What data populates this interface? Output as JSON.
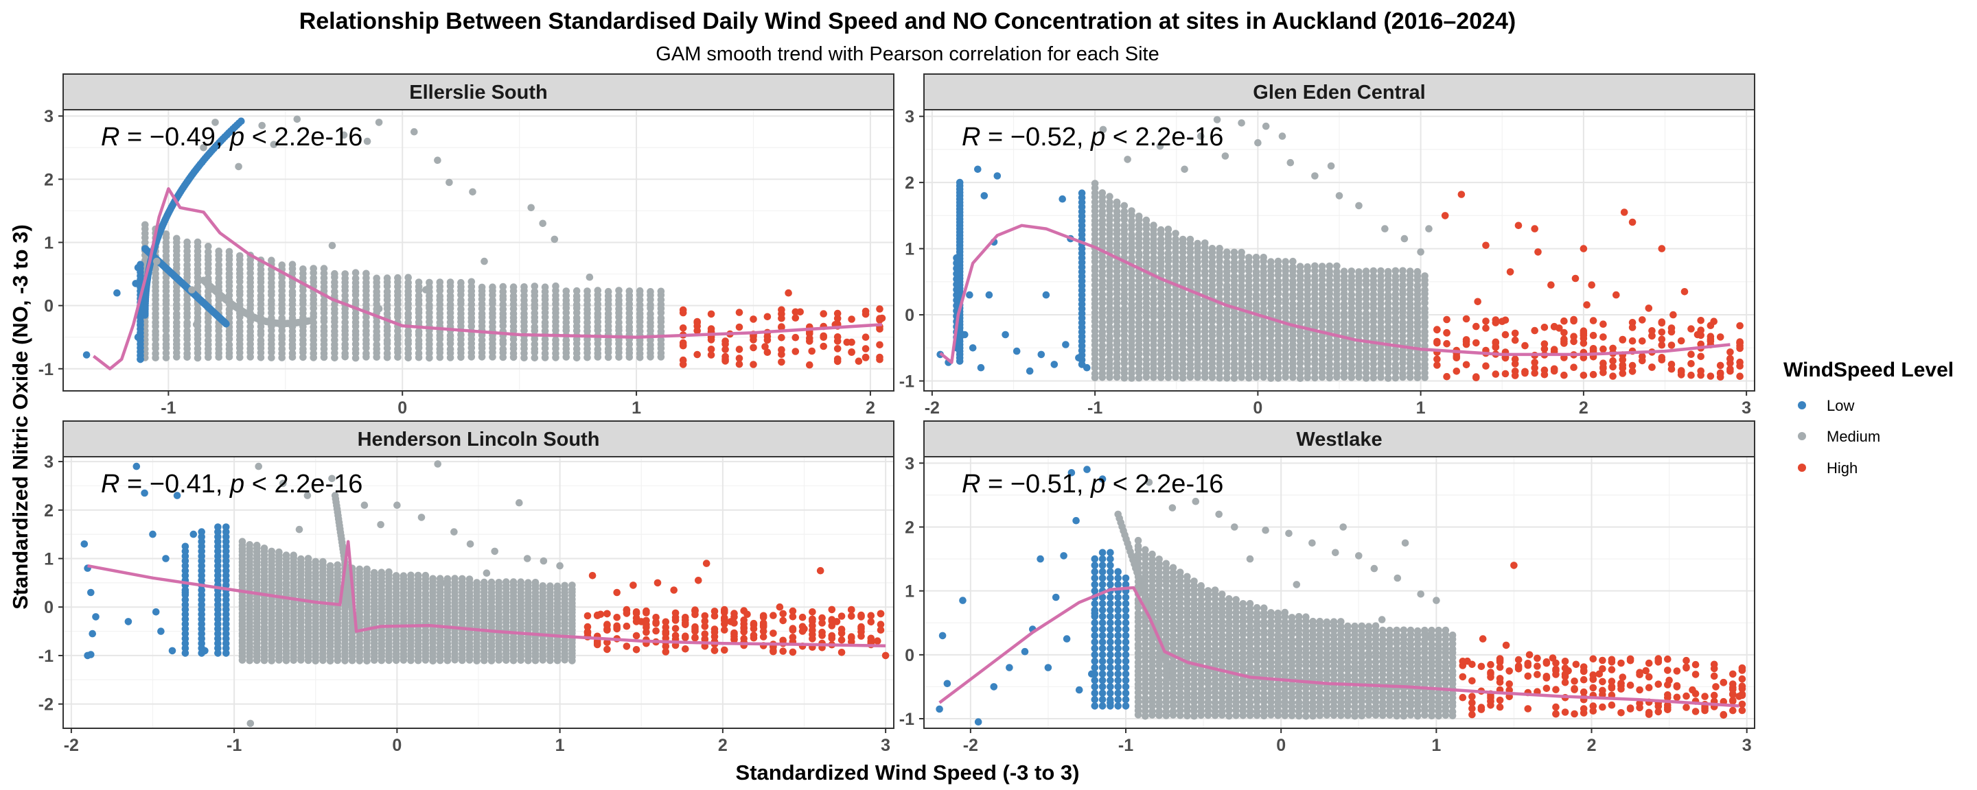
{
  "title": "Relationship Between Standardised Daily Wind Speed and NO Concentration at sites in Auckland (2016–2024)",
  "subtitle": "GAM smooth trend with Pearson correlation for each Site",
  "xlabel": "Standardized Wind Speed (-3 to 3)",
  "ylabel": "Standardized Nitric Oxide (NO, -3 to 3)",
  "legend": {
    "title": "WindSpeed Level",
    "items": [
      {
        "label": "Low",
        "color": "#3a83c0"
      },
      {
        "label": "Medium",
        "color": "#a5acaf"
      },
      {
        "label": "High",
        "color": "#e3462e"
      }
    ]
  },
  "colors": {
    "low": "#3a83c0",
    "medium": "#a5acaf",
    "high": "#e3462e",
    "smooth": "#d36fab"
  },
  "chart_data": [
    {
      "type": "scatter",
      "facet": "Ellerslie South",
      "stat_r": "−0.49",
      "stat_p": "< 2.2e-16",
      "xlim": [
        -1.45,
        2.1
      ],
      "ylim": [
        -1.35,
        3.1
      ],
      "xticks": [
        -1,
        0,
        1,
        2
      ],
      "yticks": [
        -1,
        0,
        1,
        2,
        3
      ],
      "medium_range": [
        -1.1,
        1.15
      ],
      "mode": "ellerslie",
      "smooth": [
        [
          -1.32,
          -0.8
        ],
        [
          -1.25,
          -1.0
        ],
        [
          -1.2,
          -0.85
        ],
        [
          -1.15,
          -0.3
        ],
        [
          -1.08,
          0.7
        ],
        [
          -1.04,
          1.4
        ],
        [
          -1.0,
          1.85
        ],
        [
          -0.95,
          1.55
        ],
        [
          -0.85,
          1.48
        ],
        [
          -0.78,
          1.15
        ],
        [
          -0.65,
          0.8
        ],
        [
          -0.5,
          0.5
        ],
        [
          -0.3,
          0.1
        ],
        [
          0.0,
          -0.32
        ],
        [
          0.5,
          -0.46
        ],
        [
          1.0,
          -0.5
        ],
        [
          1.5,
          -0.43
        ],
        [
          2.05,
          -0.3
        ]
      ],
      "low_points": [
        [
          -1.35,
          -0.78
        ],
        [
          -1.22,
          0.2
        ],
        [
          -1.12,
          -0.3
        ],
        [
          -1.13,
          0.6
        ],
        [
          -1.12,
          -0.85
        ],
        [
          -1.13,
          -0.5
        ],
        [
          -1.12,
          0.0
        ],
        [
          -1.14,
          0.35
        ]
      ],
      "high_points": [
        [
          1.4,
          -0.45
        ],
        [
          1.55,
          -0.65
        ],
        [
          1.65,
          0.2
        ],
        [
          1.75,
          -0.72
        ],
        [
          1.8,
          -0.5
        ],
        [
          1.9,
          -0.58
        ],
        [
          1.95,
          -0.88
        ],
        [
          2.05,
          -0.2
        ],
        [
          1.85,
          -0.3
        ],
        [
          1.7,
          -0.1
        ]
      ],
      "medium_points": [
        [
          -0.6,
          2.85
        ],
        [
          -0.55,
          2.55
        ],
        [
          -0.45,
          2.95
        ],
        [
          -0.25,
          2.7
        ],
        [
          -0.15,
          2.6
        ],
        [
          -0.1,
          2.9
        ],
        [
          0.05,
          2.75
        ],
        [
          0.15,
          2.3
        ],
        [
          -0.7,
          2.2
        ],
        [
          0.2,
          1.95
        ],
        [
          0.3,
          1.8
        ],
        [
          0.55,
          1.55
        ],
        [
          0.6,
          1.3
        ],
        [
          0.65,
          1.05
        ],
        [
          -0.85,
          2.5
        ],
        [
          -0.8,
          2.9
        ],
        [
          -1.05,
          0.7
        ],
        [
          -0.88,
          -0.3
        ],
        [
          -0.9,
          0.25
        ],
        [
          -0.3,
          0.95
        ],
        [
          0.35,
          0.7
        ],
        [
          0.1,
          0.25
        ],
        [
          0.8,
          0.45
        ],
        [
          -0.1,
          -0.05
        ]
      ]
    },
    {
      "type": "scatter",
      "facet": "Glen Eden Central",
      "stat_r": "−0.52",
      "stat_p": "< 2.2e-16",
      "xlim": [
        -2.05,
        3.05
      ],
      "ylim": [
        -1.15,
        3.1
      ],
      "xticks": [
        -2,
        -1,
        0,
        1,
        2,
        3
      ],
      "yticks": [
        -1,
        0,
        1,
        2,
        3
      ],
      "medium_range": [
        -1.0,
        1.05
      ],
      "mode": "glen",
      "smooth": [
        [
          -1.95,
          -0.58
        ],
        [
          -1.88,
          -0.72
        ],
        [
          -1.84,
          0.0
        ],
        [
          -1.75,
          0.78
        ],
        [
          -1.6,
          1.2
        ],
        [
          -1.45,
          1.35
        ],
        [
          -1.3,
          1.3
        ],
        [
          -1.0,
          1.02
        ],
        [
          -0.6,
          0.55
        ],
        [
          -0.2,
          0.15
        ],
        [
          0.2,
          -0.15
        ],
        [
          0.6,
          -0.38
        ],
        [
          1.0,
          -0.52
        ],
        [
          1.5,
          -0.6
        ],
        [
          2.0,
          -0.6
        ],
        [
          2.5,
          -0.55
        ],
        [
          2.9,
          -0.45
        ]
      ],
      "low_points": [
        [
          -1.95,
          -0.6
        ],
        [
          -1.9,
          -0.72
        ],
        [
          -1.75,
          -0.5
        ],
        [
          -1.7,
          -0.8
        ],
        [
          -1.62,
          1.1
        ],
        [
          -1.55,
          -0.3
        ],
        [
          -1.48,
          -0.55
        ],
        [
          -1.4,
          -0.85
        ],
        [
          -1.33,
          -0.6
        ],
        [
          -1.3,
          0.3
        ],
        [
          -1.25,
          -0.75
        ],
        [
          -1.18,
          -0.45
        ],
        [
          -1.1,
          -0.65
        ],
        [
          -1.15,
          1.15
        ],
        [
          -1.2,
          1.75
        ],
        [
          -1.68,
          1.8
        ],
        [
          -1.72,
          2.2
        ],
        [
          -1.8,
          -0.3
        ],
        [
          -1.77,
          0.3
        ],
        [
          -1.65,
          0.3
        ],
        [
          -1.05,
          -0.8
        ],
        [
          -1.6,
          2.1
        ]
      ],
      "high_points": [
        [
          1.25,
          1.82
        ],
        [
          1.15,
          1.5
        ],
        [
          1.4,
          1.05
        ],
        [
          1.55,
          0.65
        ],
        [
          1.6,
          1.35
        ],
        [
          1.7,
          1.3
        ],
        [
          1.72,
          0.95
        ],
        [
          1.8,
          0.45
        ],
        [
          1.85,
          -0.2
        ],
        [
          2.0,
          1.0
        ],
        [
          2.02,
          0.15
        ],
        [
          2.05,
          0.45
        ],
        [
          2.2,
          0.3
        ],
        [
          2.25,
          1.55
        ],
        [
          2.3,
          1.4
        ],
        [
          2.48,
          1.0
        ],
        [
          2.55,
          0.0
        ],
        [
          2.62,
          0.35
        ],
        [
          2.7,
          -0.3
        ],
        [
          2.8,
          -0.1
        ],
        [
          1.95,
          0.55
        ],
        [
          1.35,
          0.2
        ],
        [
          1.5,
          -0.1
        ],
        [
          2.4,
          0.1
        ]
      ],
      "medium_points": [
        [
          -0.25,
          2.95
        ],
        [
          -0.35,
          2.7
        ],
        [
          -0.1,
          2.9
        ],
        [
          0.05,
          2.85
        ],
        [
          -0.8,
          2.35
        ],
        [
          -0.6,
          2.55
        ],
        [
          -0.45,
          2.2
        ],
        [
          0.0,
          2.6
        ],
        [
          0.2,
          2.3
        ],
        [
          0.35,
          2.1
        ],
        [
          0.5,
          1.8
        ],
        [
          0.62,
          1.65
        ],
        [
          0.78,
          1.3
        ],
        [
          0.9,
          1.15
        ],
        [
          1.0,
          0.95
        ],
        [
          1.05,
          1.3
        ],
        [
          -0.2,
          2.4
        ],
        [
          0.45,
          2.25
        ],
        [
          0.15,
          2.7
        ],
        [
          -0.95,
          2.8
        ]
      ]
    },
    {
      "type": "scatter",
      "facet": "Henderson Lincoln South",
      "stat_r": "−0.41",
      "stat_p": "< 2.2e-16",
      "xlim": [
        -2.05,
        3.05
      ],
      "ylim": [
        -2.5,
        3.1
      ],
      "xticks": [
        -2,
        -1,
        0,
        1,
        2,
        3
      ],
      "yticks": [
        -2,
        -1,
        0,
        1,
        2,
        3
      ],
      "medium_range": [
        -0.95,
        1.12
      ],
      "mode": "henderson",
      "smooth": [
        [
          -1.9,
          0.85
        ],
        [
          -1.5,
          0.6
        ],
        [
          -1.0,
          0.35
        ],
        [
          -0.5,
          0.1
        ],
        [
          -0.35,
          0.05
        ],
        [
          -0.3,
          1.35
        ],
        [
          -0.25,
          -0.5
        ],
        [
          -0.1,
          -0.4
        ],
        [
          0.2,
          -0.38
        ],
        [
          0.6,
          -0.5
        ],
        [
          1.0,
          -0.6
        ],
        [
          1.5,
          -0.7
        ],
        [
          2.0,
          -0.75
        ],
        [
          2.5,
          -0.77
        ],
        [
          3.0,
          -0.8
        ]
      ],
      "low_points": [
        [
          -1.9,
          -1.0
        ],
        [
          -1.88,
          -0.98
        ],
        [
          -1.92,
          1.3
        ],
        [
          -1.9,
          0.8
        ],
        [
          -1.88,
          0.3
        ],
        [
          -1.85,
          -0.2
        ],
        [
          -1.87,
          -0.55
        ],
        [
          -1.6,
          2.9
        ],
        [
          -1.55,
          2.35
        ],
        [
          -1.5,
          1.5
        ],
        [
          -1.45,
          -0.5
        ],
        [
          -1.42,
          1.0
        ],
        [
          -1.35,
          2.3
        ],
        [
          -1.3,
          0.3
        ],
        [
          -1.38,
          -0.9
        ],
        [
          -1.25,
          1.5
        ],
        [
          -1.18,
          -0.9
        ],
        [
          -1.48,
          -0.1
        ],
        [
          -1.65,
          -0.3
        ]
      ],
      "high_points": [
        [
          1.2,
          0.65
        ],
        [
          1.25,
          -0.15
        ],
        [
          1.35,
          0.3
        ],
        [
          1.45,
          0.45
        ],
        [
          1.6,
          0.5
        ],
        [
          1.7,
          0.35
        ],
        [
          1.85,
          0.55
        ],
        [
          1.9,
          0.9
        ],
        [
          2.05,
          -0.3
        ],
        [
          2.15,
          -0.15
        ],
        [
          2.35,
          0.0
        ],
        [
          2.5,
          -0.45
        ],
        [
          2.55,
          -0.25
        ],
        [
          2.6,
          0.75
        ],
        [
          2.7,
          -0.3
        ],
        [
          2.85,
          -0.2
        ],
        [
          3.0,
          -1.0
        ],
        [
          2.95,
          -0.7
        ],
        [
          1.5,
          -0.3
        ],
        [
          2.25,
          -0.5
        ]
      ],
      "medium_points": [
        [
          -0.9,
          -2.4
        ],
        [
          -0.85,
          2.9
        ],
        [
          -0.7,
          2.55
        ],
        [
          -0.55,
          2.3
        ],
        [
          -0.4,
          2.65
        ],
        [
          -0.2,
          2.1
        ],
        [
          0.0,
          2.1
        ],
        [
          0.15,
          1.85
        ],
        [
          0.25,
          2.95
        ],
        [
          0.35,
          1.55
        ],
        [
          0.45,
          1.3
        ],
        [
          0.6,
          1.15
        ],
        [
          0.75,
          2.15
        ],
        [
          0.8,
          1.0
        ],
        [
          0.9,
          0.95
        ],
        [
          1.0,
          0.85
        ],
        [
          -0.1,
          1.7
        ],
        [
          0.55,
          0.7
        ],
        [
          0.3,
          0.5
        ],
        [
          -0.6,
          1.6
        ]
      ]
    },
    {
      "type": "scatter",
      "facet": "Westlake",
      "stat_r": "−0.51",
      "stat_p": "< 2.2e-16",
      "xlim": [
        -2.3,
        3.05
      ],
      "ylim": [
        -1.15,
        3.1
      ],
      "xticks": [
        -2,
        -1,
        0,
        1,
        2,
        3
      ],
      "yticks": [
        -1,
        0,
        1,
        2,
        3
      ],
      "medium_range": [
        -0.92,
        1.12
      ],
      "mode": "westlake",
      "smooth": [
        [
          -2.2,
          -0.75
        ],
        [
          -1.9,
          -0.2
        ],
        [
          -1.6,
          0.35
        ],
        [
          -1.3,
          0.82
        ],
        [
          -1.1,
          1.02
        ],
        [
          -0.95,
          1.05
        ],
        [
          -0.85,
          0.6
        ],
        [
          -0.75,
          0.05
        ],
        [
          -0.6,
          -0.12
        ],
        [
          -0.2,
          -0.35
        ],
        [
          0.3,
          -0.45
        ],
        [
          0.8,
          -0.5
        ],
        [
          1.3,
          -0.58
        ],
        [
          1.8,
          -0.65
        ],
        [
          2.3,
          -0.7
        ],
        [
          2.95,
          -0.8
        ]
      ],
      "low_points": [
        [
          -2.2,
          -0.85
        ],
        [
          -2.18,
          0.3
        ],
        [
          -2.15,
          -0.45
        ],
        [
          -2.05,
          0.85
        ],
        [
          -1.95,
          -1.05
        ],
        [
          -1.85,
          -0.5
        ],
        [
          -1.75,
          -0.2
        ],
        [
          -1.65,
          0.05
        ],
        [
          -1.6,
          0.4
        ],
        [
          -1.55,
          1.5
        ],
        [
          -1.5,
          -0.2
        ],
        [
          -1.45,
          0.9
        ],
        [
          -1.4,
          1.55
        ],
        [
          -1.38,
          0.25
        ],
        [
          -1.32,
          2.1
        ],
        [
          -1.3,
          -0.55
        ],
        [
          -1.25,
          2.9
        ],
        [
          -1.2,
          0.65
        ],
        [
          -1.15,
          2.75
        ],
        [
          -1.1,
          -0.75
        ],
        [
          -1.35,
          2.85
        ],
        [
          -1.22,
          -0.3
        ]
      ],
      "high_points": [
        [
          1.2,
          -0.1
        ],
        [
          1.3,
          0.25
        ],
        [
          1.45,
          0.15
        ],
        [
          1.5,
          1.4
        ],
        [
          1.6,
          0.0
        ],
        [
          1.75,
          -0.05
        ],
        [
          1.9,
          -0.15
        ],
        [
          2.05,
          -0.3
        ],
        [
          2.2,
          -0.35
        ],
        [
          2.35,
          -0.25
        ],
        [
          2.5,
          -0.4
        ],
        [
          2.65,
          -0.55
        ],
        [
          2.8,
          -0.5
        ],
        [
          2.95,
          -0.65
        ],
        [
          1.35,
          -0.3
        ],
        [
          1.85,
          -0.25
        ]
      ],
      "medium_points": [
        [
          -0.85,
          2.7
        ],
        [
          -0.7,
          2.3
        ],
        [
          -0.55,
          2.4
        ],
        [
          -0.4,
          2.2
        ],
        [
          -0.3,
          2.0
        ],
        [
          -0.1,
          1.95
        ],
        [
          0.05,
          1.9
        ],
        [
          0.2,
          1.75
        ],
        [
          0.35,
          1.6
        ],
        [
          0.5,
          1.55
        ],
        [
          0.6,
          1.35
        ],
        [
          0.75,
          1.2
        ],
        [
          0.8,
          1.75
        ],
        [
          0.9,
          0.95
        ],
        [
          1.0,
          0.85
        ],
        [
          0.4,
          2.0
        ],
        [
          0.1,
          1.1
        ],
        [
          -0.2,
          1.5
        ],
        [
          0.65,
          0.55
        ],
        [
          0.95,
          0.3
        ]
      ]
    }
  ]
}
